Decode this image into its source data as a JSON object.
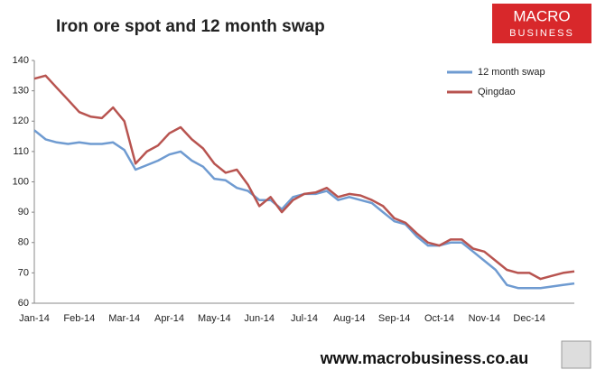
{
  "brand": {
    "line1": "MACRO",
    "line2": "BUSINESS"
  },
  "footer": "www.macrobusiness.co.au",
  "chart_data": {
    "type": "line",
    "title": "Iron ore spot and 12 month swap",
    "categories": [
      "Jan-14",
      null,
      null,
      null,
      "Feb-14",
      null,
      null,
      null,
      "Mar-14",
      null,
      null,
      null,
      "Apr-14",
      null,
      null,
      null,
      "May-14",
      null,
      null,
      null,
      "Jun-14",
      null,
      null,
      null,
      "Jul-14",
      null,
      null,
      null,
      "Aug-14",
      null,
      null,
      null,
      "Sep-14",
      null,
      null,
      null,
      "Oct-14",
      null,
      null,
      null,
      "Nov-14",
      null,
      null,
      null,
      "Dec-14",
      null,
      null,
      null,
      null
    ],
    "series": [
      {
        "name": "12 month swap",
        "color": "#6f9bd1",
        "values": [
          117,
          114,
          113,
          112.5,
          113,
          112.5,
          112.5,
          113,
          110.5,
          104,
          105.5,
          107,
          109,
          110,
          107,
          105,
          101,
          100.5,
          98,
          97,
          94,
          94,
          91,
          95,
          96,
          96,
          97,
          94,
          95,
          94,
          93,
          90,
          87,
          86,
          82,
          79,
          79,
          80,
          80,
          77,
          74,
          71,
          66,
          65,
          65,
          65,
          65.5,
          66,
          66.5
        ]
      },
      {
        "name": "Qingdao",
        "color": "#b85450",
        "values": [
          134,
          135,
          131,
          127,
          123,
          121.5,
          121,
          124.5,
          120,
          106,
          110,
          112,
          116,
          118,
          114,
          111,
          106,
          103,
          104,
          99,
          92,
          95,
          90,
          94,
          96,
          96.5,
          98,
          95,
          96,
          95.5,
          94,
          92,
          88,
          86.5,
          83,
          80,
          79,
          81,
          81,
          78,
          77,
          74,
          71,
          70,
          70,
          68,
          69,
          70,
          70.5
        ]
      }
    ],
    "ylim": [
      60,
      140
    ],
    "yticks": [
      60,
      70,
      80,
      90,
      100,
      110,
      120,
      130,
      140
    ],
    "grid": false,
    "legend": "top-right"
  }
}
